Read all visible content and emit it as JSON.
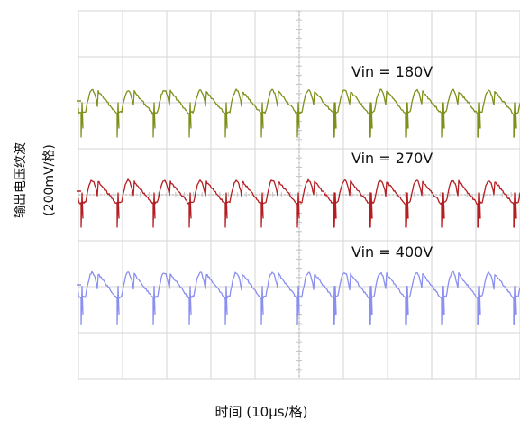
{
  "chart_data": {
    "type": "line",
    "ylabel_line1": "输出电压纹波",
    "ylabel_line2": "(200mV/格)",
    "xlabel": "时间 (10μs/格)",
    "x_divisions": 10,
    "y_divisions": 8,
    "ripple_cycles_visible": 12,
    "series": [
      {
        "name": "Vin = 180V",
        "color": "#7f8f1a"
      },
      {
        "name": "Vin = 270V",
        "color": "#b41e22"
      },
      {
        "name": "Vin = 400V",
        "color": "#8a8ff0"
      }
    ]
  }
}
